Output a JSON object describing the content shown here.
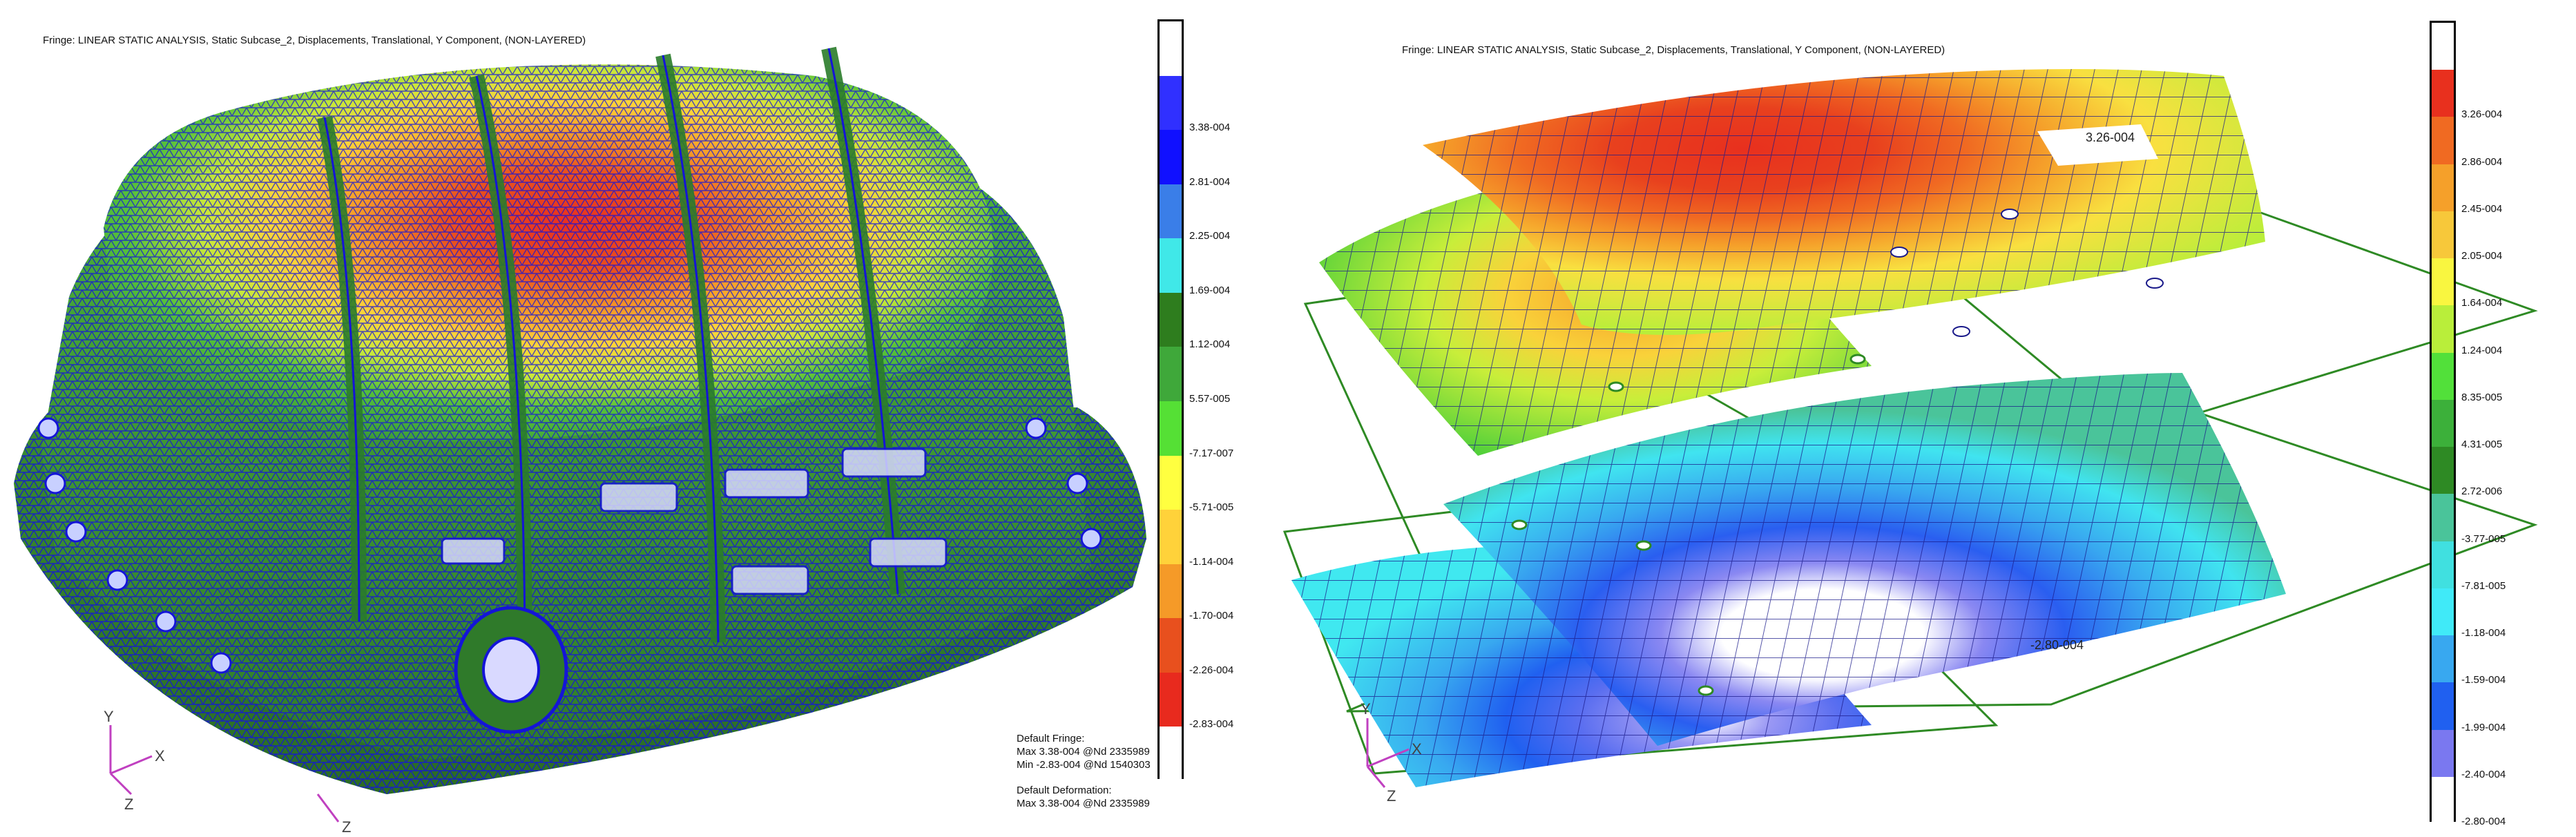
{
  "left": {
    "title": "Fringe: LINEAR STATIC ANALYSIS, Static Subcase_2, Displacements, Translational, Y Component, (NON-LAYERED)",
    "legend": {
      "colors": [
        "#ffffff",
        "#3030ff",
        "#1010ff",
        "#3a7ee8",
        "#40e8e8",
        "#2e7d1e",
        "#3fa83a",
        "#55e035",
        "#ffff40",
        "#ffd23a",
        "#f59a28",
        "#e8501e",
        "#e82a1e",
        "#ffffff"
      ],
      "labels": [
        "3.38-004",
        "2.81-004",
        "2.25-004",
        "1.69-004",
        "1.12-004",
        "5.57-005",
        "-7.17-007",
        "-5.71-005",
        "-1.14-004",
        "-1.70-004",
        "-2.26-004",
        "-2.83-004"
      ]
    },
    "info": {
      "fringe_header": "Default Fringe:",
      "fringe_max": "Max 3.38-004 @Nd 2335989",
      "fringe_min": "Min -2.83-004 @Nd 1540303",
      "deform_header": "Default Deformation:",
      "deform_max": "Max 3.38-004 @Nd 2335989"
    },
    "triad": {
      "y": "Y",
      "x": "X",
      "z": "Z",
      "z2": "Z"
    }
  },
  "right": {
    "title": "Fringe: LINEAR STATIC ANALYSIS, Static Subcase_2, Displacements, Translational, Y Component, (NON-LAYERED)",
    "legend": {
      "colors": [
        "#ffffff",
        "#e8301e",
        "#f06a22",
        "#f5a02a",
        "#f7c83a",
        "#f9f640",
        "#b9ee3a",
        "#52e03a",
        "#3cb03a",
        "#2e8a24",
        "#4ac49a",
        "#40e0e0",
        "#40eaf8",
        "#38a8f0",
        "#2060f0",
        "#7a78f0",
        "#ffffff"
      ],
      "labels": [
        "3.26-004",
        "2.86-004",
        "2.45-004",
        "2.05-004",
        "1.64-004",
        "1.24-004",
        "8.35-005",
        "4.31-005",
        "2.72-006",
        "-3.77-005",
        "-7.81-005",
        "-1.18-004",
        "-1.59-004",
        "-1.99-004",
        "-2.40-004",
        "-2.80-004"
      ]
    },
    "max_label": "3.26-004",
    "min_label": "-2.80-004",
    "triad": {
      "y": "Y",
      "x": "X",
      "z": "Z"
    }
  }
}
